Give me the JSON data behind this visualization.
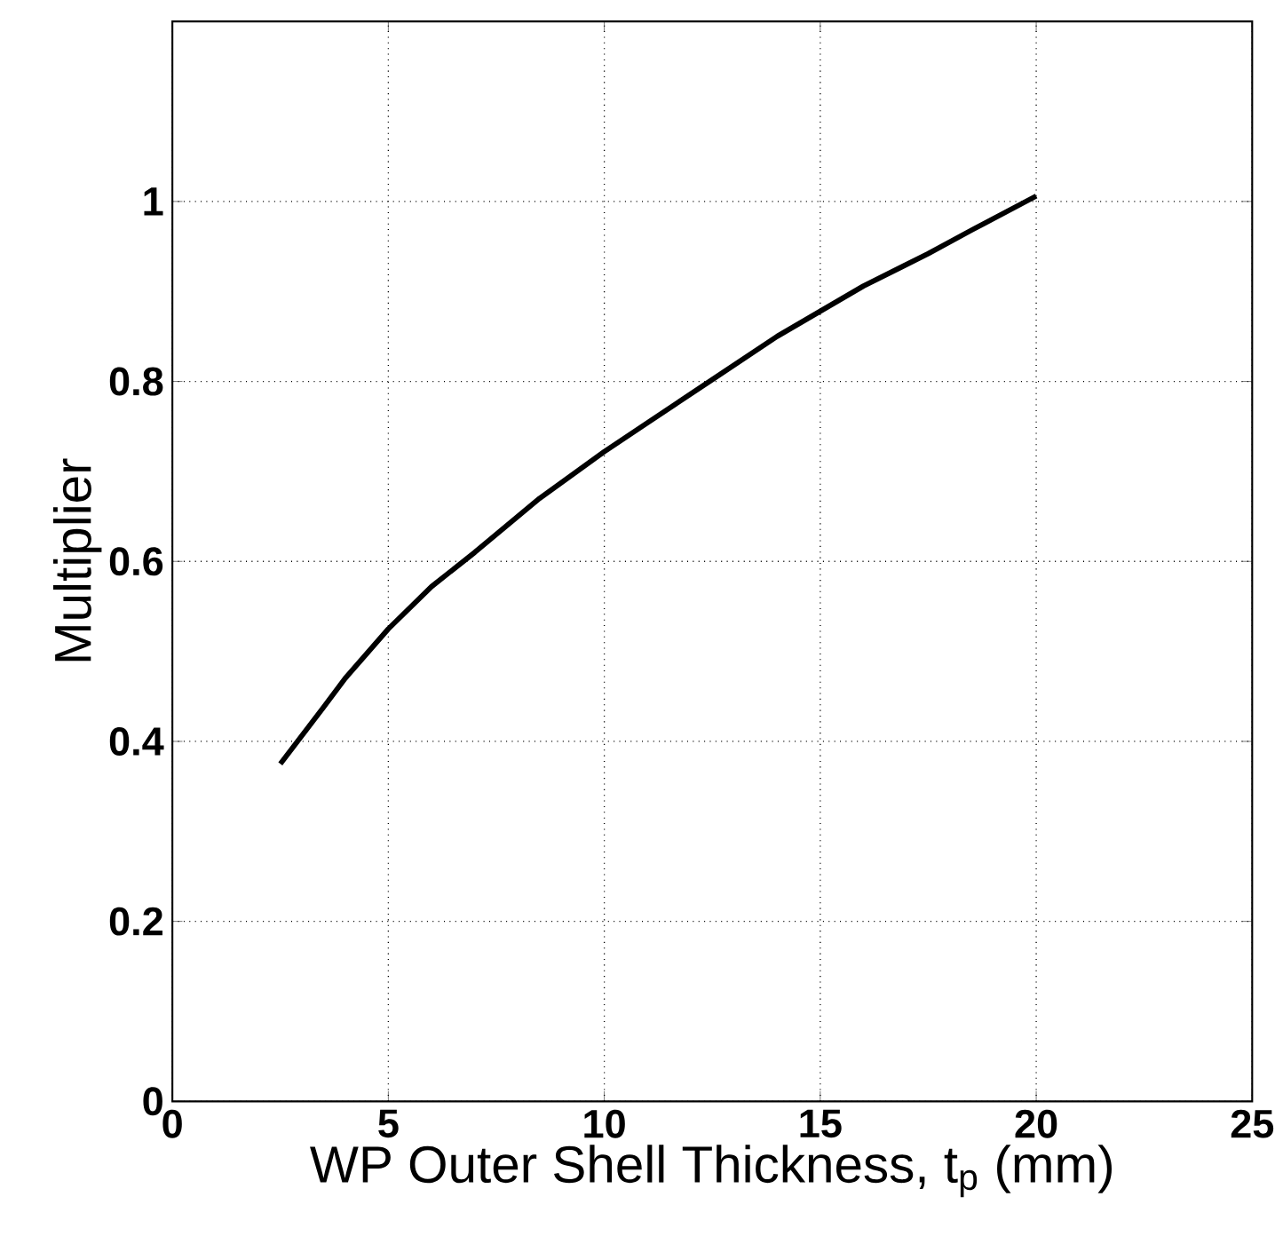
{
  "chart_data": {
    "type": "line",
    "xlabel": "WP Outer Shell Thickness, t$_{p}$ (mm)",
    "ylabel": "Multiplier",
    "xlim": [
      0,
      25
    ],
    "xticks": [
      0,
      5,
      10,
      15,
      20,
      25
    ],
    "ylim": [
      0,
      1.2
    ],
    "yticks": [
      0,
      0.2,
      0.4,
      0.6,
      0.8,
      1
    ],
    "grid": true,
    "marker": "none",
    "line_style": "solid",
    "series": [
      {
        "color": "#000000",
        "x": [
          2.5,
          3.5,
          4,
          5,
          6,
          7,
          8.5,
          10,
          11,
          12.5,
          14,
          15,
          16,
          17.5,
          18.5,
          20
        ],
        "values": [
          0.375,
          0.438,
          0.47,
          0.525,
          0.572,
          0.61,
          0.67,
          0.722,
          0.754,
          0.802,
          0.85,
          0.878,
          0.906,
          0.942,
          0.968,
          1.006
        ]
      }
    ]
  }
}
